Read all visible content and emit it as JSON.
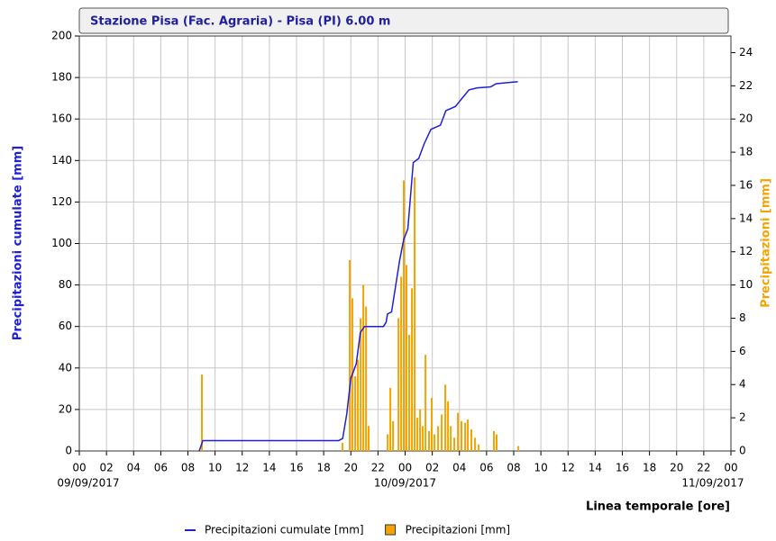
{
  "chart_data": {
    "type": "line",
    "title": "Stazione Pisa (Fac. Agraria) - Pisa (PI) 6.00 m",
    "xlabel": "Linea temporale [ore]",
    "ylabel": "Precipitazioni cumulate [mm]",
    "y2label": "Precipitazioni [mm]",
    "xlim": [
      0,
      48
    ],
    "ylim": [
      0,
      200
    ],
    "y2lim": [
      0,
      25
    ],
    "grid": true,
    "xticks": [
      {
        "value": 0,
        "label": "00"
      },
      {
        "value": 2,
        "label": "02"
      },
      {
        "value": 4,
        "label": "04"
      },
      {
        "value": 6,
        "label": "06"
      },
      {
        "value": 8,
        "label": "08"
      },
      10,
      12,
      14,
      16,
      18,
      20,
      22,
      {
        "value": 24,
        "label": "00"
      },
      {
        "value": 26,
        "label": "02"
      },
      {
        "value": 28,
        "label": "04"
      },
      {
        "value": 30,
        "label": "06"
      },
      {
        "value": 32,
        "label": "08"
      },
      {
        "value": 34,
        "label": "10"
      },
      {
        "value": 36,
        "label": "12"
      },
      {
        "value": 38,
        "label": "14"
      },
      {
        "value": 40,
        "label": "16"
      },
      {
        "value": 42,
        "label": "18"
      },
      {
        "value": 44,
        "label": "20"
      },
      {
        "value": 46,
        "label": "22"
      },
      {
        "value": 48,
        "label": "00"
      }
    ],
    "date_labels": [
      {
        "value": 0,
        "label": "09/09/2017"
      },
      {
        "value": 24,
        "label": "10/09/2017"
      },
      {
        "value": 48,
        "label": "11/09/2017"
      }
    ],
    "yticks": [
      0,
      20,
      40,
      60,
      80,
      100,
      120,
      140,
      160,
      180,
      200
    ],
    "y2ticks": [
      0,
      2,
      4,
      6,
      8,
      10,
      12,
      14,
      16,
      18,
      20,
      22,
      24
    ],
    "series": [
      {
        "name": "Precipitazioni cumulate [mm]",
        "color": "#1f1fd6",
        "type": "line",
        "x": [
          8.83,
          9.1,
          19.1,
          19.4,
          19.7,
          20.0,
          20.4,
          20.7,
          21.0,
          22.4,
          22.6,
          22.7,
          23.0,
          23.6,
          23.9,
          24.2,
          24.6,
          25.0,
          25.4,
          25.9,
          26.6,
          27.0,
          27.7,
          28.2,
          28.7,
          29.3,
          30.3,
          30.7,
          32.3
        ],
        "values": [
          0,
          5,
          5,
          6,
          17.8,
          35,
          42,
          57,
          60,
          60,
          62,
          66,
          67,
          92,
          102,
          107,
          139,
          141,
          148,
          155,
          157,
          164,
          166,
          170,
          174,
          175,
          175.5,
          177,
          178
        ]
      },
      {
        "name": "Precipitazioni [mm]",
        "color": "#f5a300",
        "type": "bar",
        "axis": "y2",
        "x": [
          9.03,
          19.39,
          19.92,
          20.12,
          20.32,
          20.52,
          20.72,
          20.92,
          21.12,
          21.31,
          22.71,
          22.91,
          23.11,
          23.51,
          23.71,
          23.9,
          24.1,
          24.3,
          24.5,
          24.7,
          24.9,
          25.1,
          25.3,
          25.5,
          25.76,
          25.96,
          26.16,
          26.43,
          26.69,
          26.96,
          27.16,
          27.36,
          27.62,
          27.89,
          28.15,
          28.42,
          28.62,
          28.88,
          29.15,
          29.42,
          30.54,
          30.74,
          32.34
        ],
        "values": [
          4.6,
          0.5,
          11.5,
          9.2,
          4.5,
          5.5,
          8.0,
          10.0,
          8.7,
          1.5,
          1.0,
          3.8,
          1.8,
          8.0,
          10.5,
          16.3,
          11.2,
          7.0,
          9.8,
          16.5,
          2.0,
          2.5,
          1.5,
          5.8,
          1.2,
          3.2,
          1.0,
          1.5,
          2.2,
          4.0,
          3.0,
          1.5,
          0.8,
          2.3,
          1.8,
          1.7,
          1.9,
          1.3,
          0.8,
          0.4,
          1.2,
          1.0,
          0.3
        ]
      }
    ]
  }
}
